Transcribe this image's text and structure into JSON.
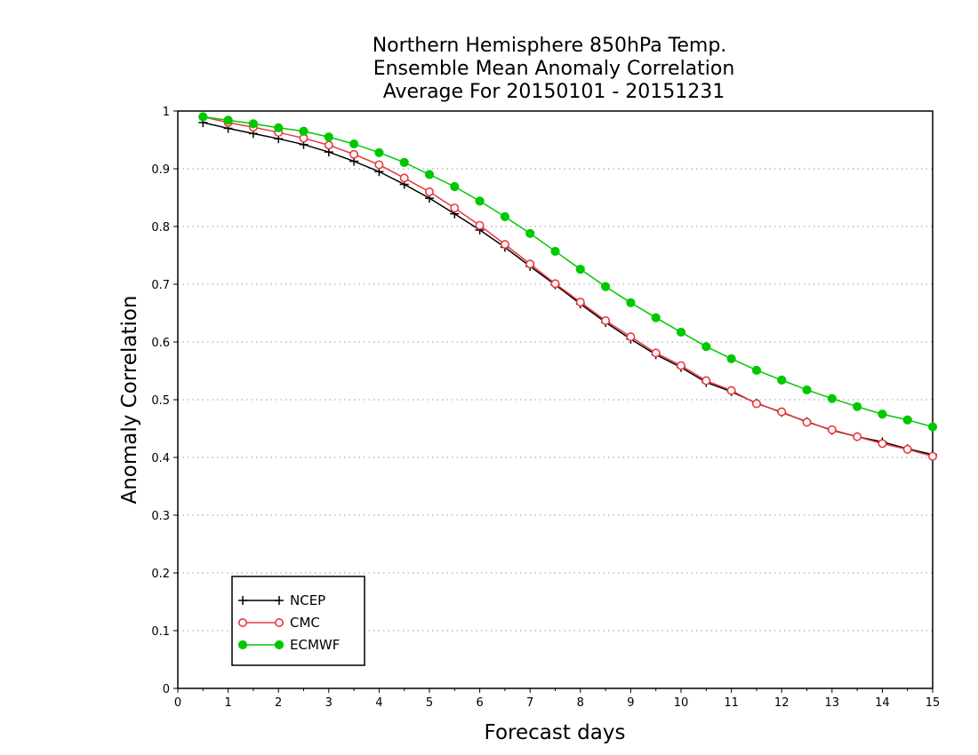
{
  "chart_data": {
    "type": "line",
    "title": [
      "Northern Hemisphere 850hPa Temp.",
      "Ensemble Mean Anomaly Correlation",
      "Average For 20150101 - 20151231"
    ],
    "xlabel": "Forecast days",
    "ylabel": "Anomaly Correlation",
    "xlim": [
      0,
      15
    ],
    "ylim": [
      0,
      1
    ],
    "xticks": [
      "0",
      "1",
      "2",
      "3",
      "4",
      "5",
      "6",
      "7",
      "8",
      "9",
      "10",
      "11",
      "12",
      "13",
      "14",
      "15"
    ],
    "yticks": [
      "0",
      "0.1",
      "0.2",
      "0.3",
      "0.4",
      "0.5",
      "0.6",
      "0.7",
      "0.8",
      "0.9",
      "1"
    ],
    "grid": "horizontal dotted",
    "legend_position": "bottom-left",
    "x": [
      0.5,
      1,
      1.5,
      2,
      2.5,
      3,
      3.5,
      4,
      4.5,
      5,
      5.5,
      6,
      6.5,
      7,
      7.5,
      8,
      8.5,
      9,
      9.5,
      10,
      10.5,
      11,
      11.5,
      12,
      12.5,
      13,
      13.5,
      14,
      14.5,
      15
    ],
    "series": [
      {
        "name": "NCEP",
        "color": "#000000",
        "marker": "plus",
        "values": [
          0.98,
          0.97,
          0.961,
          0.952,
          0.942,
          0.929,
          0.913,
          0.895,
          0.873,
          0.849,
          0.822,
          0.794,
          0.764,
          0.731,
          0.699,
          0.666,
          0.634,
          0.605,
          0.578,
          0.556,
          0.53,
          0.514,
          0.494,
          0.478,
          0.462,
          0.447,
          0.436,
          0.427,
          0.415,
          0.405
        ]
      },
      {
        "name": "CMC",
        "color": "#e8393f",
        "marker": "open-circle",
        "values": [
          0.99,
          0.98,
          0.972,
          0.963,
          0.953,
          0.941,
          0.925,
          0.907,
          0.884,
          0.86,
          0.832,
          0.802,
          0.769,
          0.735,
          0.701,
          0.669,
          0.637,
          0.609,
          0.581,
          0.559,
          0.533,
          0.516,
          0.493,
          0.479,
          0.461,
          0.448,
          0.436,
          0.424,
          0.414,
          0.402
        ]
      },
      {
        "name": "ECMWF",
        "color": "#00c800",
        "marker": "filled-circle",
        "values": [
          0.99,
          0.984,
          0.978,
          0.971,
          0.965,
          0.955,
          0.943,
          0.928,
          0.911,
          0.89,
          0.869,
          0.844,
          0.817,
          0.788,
          0.757,
          0.726,
          0.696,
          0.668,
          0.642,
          0.617,
          0.592,
          0.571,
          0.551,
          0.534,
          0.517,
          0.502,
          0.488,
          0.475,
          0.465,
          0.453
        ]
      }
    ]
  }
}
